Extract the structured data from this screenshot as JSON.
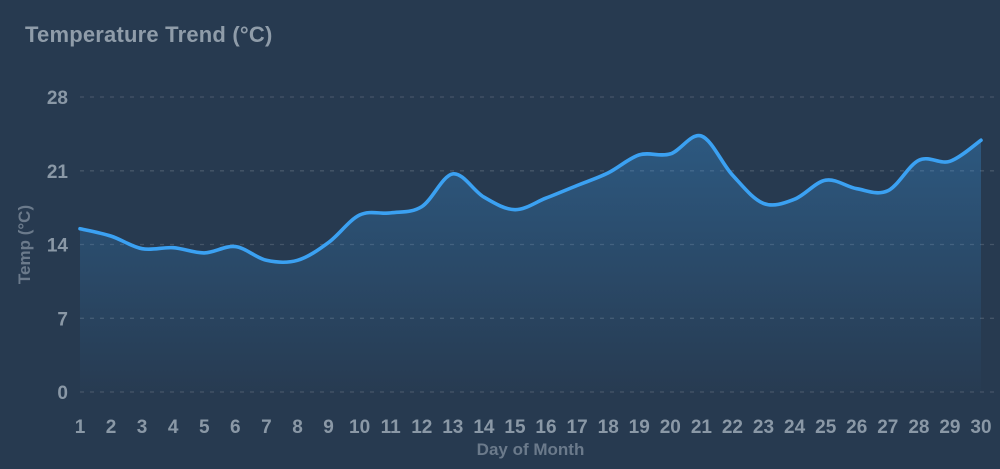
{
  "title": "Temperature Trend (°C)",
  "chart_data": {
    "type": "area",
    "title": "Temperature Trend (°C)",
    "xlabel": "Day of Month",
    "ylabel": "Temp (°C)",
    "categories": [
      1,
      2,
      3,
      4,
      5,
      6,
      7,
      8,
      9,
      10,
      11,
      12,
      13,
      14,
      15,
      16,
      17,
      18,
      19,
      20,
      21,
      22,
      23,
      24,
      25,
      26,
      27,
      28,
      29,
      30
    ],
    "values": [
      15.5,
      14.8,
      13.6,
      13.7,
      13.2,
      13.8,
      12.5,
      12.5,
      14.2,
      16.8,
      17.0,
      17.6,
      20.7,
      18.5,
      17.3,
      18.4,
      19.6,
      20.8,
      22.5,
      22.6,
      24.3,
      20.6,
      17.9,
      18.3,
      20.1,
      19.3,
      19.1,
      22.0,
      21.9,
      23.9
    ],
    "y_ticks": [
      0,
      7,
      14,
      21,
      28
    ],
    "ylim": [
      0,
      28
    ],
    "grid": "horizontal-dashed",
    "legend": "none",
    "colors": {
      "background": "#273a50",
      "line": "#3ba1f2",
      "fill_top": "rgba(59,161,242,0.34)",
      "fill_bottom": "rgba(59,161,242,0.01)",
      "gridline": "rgba(255,255,255,0.14)",
      "tick_label": "#8a98a6",
      "axis_label": "#6b7a8b",
      "title": "#8f9ca9"
    }
  }
}
